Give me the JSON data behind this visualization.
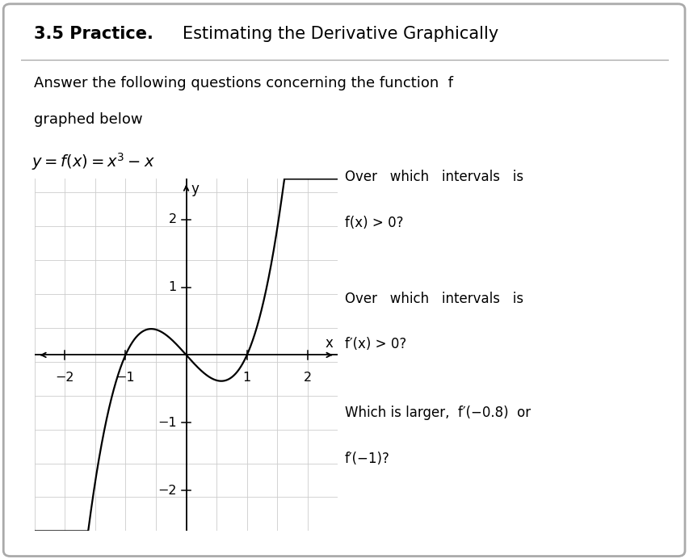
{
  "title_bold": "3.5 Practice.",
  "title_normal": "Estimating the Derivative Graphically",
  "intro_line1": "Answer the following questions concerning the function  f",
  "intro_line2": "graphed below",
  "equation": "$y = f(x) = x^3 - x$",
  "q1_line1": "Over   which   intervals   is",
  "q1_line2": "f(x) > 0?",
  "q2_line1": "Over   which   intervals   is",
  "q2_line2": "f′(x) > 0?",
  "q3_line1": "Which is larger,  f′(−0.8)  or",
  "q3_line2": "f′(−1)?",
  "x_label": "x",
  "y_label": "y",
  "xlim": [
    -2.5,
    2.5
  ],
  "ylim": [
    -2.6,
    2.6
  ],
  "xticks": [
    -2,
    -1,
    1,
    2
  ],
  "yticks": [
    -2,
    -1,
    1,
    2
  ],
  "bg_color": "#ffffff",
  "border_color": "#aaaaaa",
  "curve_color": "#000000",
  "grid_color": "#cccccc",
  "axis_color": "#000000",
  "font_color": "#000000",
  "grid_step": 0.5
}
